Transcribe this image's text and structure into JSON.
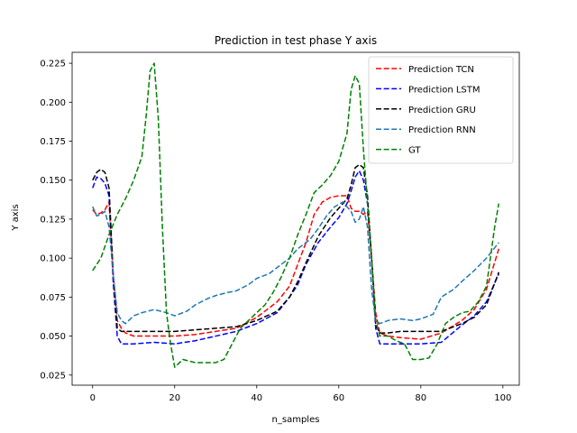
{
  "chart_data": {
    "type": "line",
    "title": "Prediction in test phase Y axis",
    "xlabel": "n_samples",
    "ylabel": "Y axis",
    "xlim": [
      -5,
      104
    ],
    "ylim": [
      0.0185,
      0.232
    ],
    "xticks": [
      0,
      20,
      40,
      60,
      80,
      100
    ],
    "xtick_labels": [
      "0",
      "20",
      "40",
      "60",
      "80",
      "100"
    ],
    "yticks": [
      0.025,
      0.05,
      0.075,
      0.1,
      0.125,
      0.15,
      0.175,
      0.2,
      0.225
    ],
    "ytick_labels": [
      "0.025",
      "0.050",
      "0.075",
      "0.100",
      "0.125",
      "0.150",
      "0.175",
      "0.200",
      "0.225"
    ],
    "grid": false,
    "legend_position": "upper right",
    "series": [
      {
        "name": "Prediction TCN",
        "color": "#ff0000",
        "x": [
          0,
          1,
          2,
          3,
          4,
          5,
          6,
          7,
          8,
          10,
          15,
          20,
          25,
          30,
          35,
          40,
          45,
          48,
          50,
          52,
          54,
          56,
          58,
          60,
          62,
          63,
          64,
          65,
          66,
          67,
          68,
          69,
          70,
          72,
          75,
          80,
          85,
          90,
          93,
          96,
          99
        ],
        "y": [
          0.131,
          0.128,
          0.129,
          0.131,
          0.136,
          0.09,
          0.06,
          0.055,
          0.052,
          0.05,
          0.05,
          0.05,
          0.051,
          0.053,
          0.055,
          0.062,
          0.072,
          0.082,
          0.096,
          0.11,
          0.128,
          0.136,
          0.139,
          0.14,
          0.14,
          0.132,
          0.13,
          0.13,
          0.128,
          0.13,
          0.1,
          0.065,
          0.052,
          0.05,
          0.049,
          0.048,
          0.052,
          0.06,
          0.067,
          0.08,
          0.106
        ]
      },
      {
        "name": "Prediction LSTM",
        "color": "#0000ff",
        "x": [
          0,
          1,
          2,
          3,
          4,
          5,
          6,
          7,
          10,
          15,
          20,
          25,
          30,
          35,
          40,
          45,
          48,
          50,
          52,
          55,
          58,
          60,
          62,
          63,
          64,
          65,
          66,
          67,
          68,
          69,
          70,
          72,
          75,
          80,
          85,
          90,
          93,
          96,
          99
        ],
        "y": [
          0.145,
          0.152,
          0.151,
          0.148,
          0.14,
          0.085,
          0.05,
          0.045,
          0.045,
          0.046,
          0.045,
          0.047,
          0.05,
          0.053,
          0.058,
          0.065,
          0.075,
          0.083,
          0.096,
          0.11,
          0.12,
          0.126,
          0.135,
          0.143,
          0.152,
          0.156,
          0.15,
          0.135,
          0.1,
          0.055,
          0.045,
          0.045,
          0.045,
          0.045,
          0.046,
          0.057,
          0.063,
          0.072,
          0.09
        ]
      },
      {
        "name": "Prediction GRU",
        "color": "#000000",
        "x": [
          0,
          1,
          2,
          3,
          4,
          5,
          6,
          7,
          10,
          15,
          20,
          25,
          30,
          35,
          40,
          45,
          48,
          50,
          52,
          55,
          58,
          60,
          62,
          63,
          64,
          65,
          66,
          67,
          68,
          69,
          70,
          72,
          75,
          80,
          85,
          90,
          93,
          96,
          99
        ],
        "y": [
          0.15,
          0.155,
          0.157,
          0.155,
          0.145,
          0.09,
          0.055,
          0.053,
          0.053,
          0.053,
          0.053,
          0.054,
          0.055,
          0.056,
          0.06,
          0.066,
          0.075,
          0.085,
          0.097,
          0.114,
          0.126,
          0.132,
          0.138,
          0.147,
          0.158,
          0.16,
          0.158,
          0.14,
          0.1,
          0.057,
          0.052,
          0.052,
          0.053,
          0.053,
          0.053,
          0.058,
          0.062,
          0.07,
          0.091
        ]
      },
      {
        "name": "Prediction RNN",
        "color": "#1f77b4",
        "x": [
          0,
          1,
          2,
          3,
          4,
          5,
          6,
          7,
          8,
          10,
          12,
          15,
          18,
          20,
          23,
          25,
          28,
          30,
          33,
          35,
          38,
          40,
          43,
          45,
          48,
          50,
          53,
          55,
          57,
          59,
          61,
          63,
          64,
          65,
          66,
          67,
          68,
          69,
          70,
          72,
          75,
          78,
          80,
          83,
          85,
          88,
          90,
          93,
          96,
          99
        ],
        "y": [
          0.133,
          0.127,
          0.128,
          0.13,
          0.12,
          0.09,
          0.065,
          0.06,
          0.058,
          0.063,
          0.065,
          0.067,
          0.065,
          0.063,
          0.066,
          0.07,
          0.074,
          0.076,
          0.078,
          0.079,
          0.083,
          0.087,
          0.09,
          0.094,
          0.1,
          0.106,
          0.112,
          0.119,
          0.127,
          0.133,
          0.136,
          0.13,
          0.123,
          0.125,
          0.133,
          0.12,
          0.08,
          0.06,
          0.058,
          0.06,
          0.061,
          0.06,
          0.061,
          0.064,
          0.075,
          0.08,
          0.085,
          0.092,
          0.1,
          0.11
        ]
      },
      {
        "name": "GT",
        "color": "#008000",
        "x": [
          0,
          2,
          4,
          6,
          8,
          10,
          12,
          13,
          14,
          15,
          16,
          17,
          18,
          19,
          20,
          22,
          25,
          28,
          30,
          32,
          34,
          36,
          38,
          40,
          42,
          44,
          46,
          48,
          50,
          52,
          54,
          56,
          58,
          60,
          62,
          63,
          64,
          65,
          66,
          67,
          68,
          69,
          70,
          72,
          74,
          76,
          78,
          80,
          82,
          84,
          86,
          88,
          90,
          92,
          94,
          96,
          98,
          99
        ],
        "y": [
          0.092,
          0.1,
          0.115,
          0.128,
          0.138,
          0.15,
          0.165,
          0.19,
          0.22,
          0.225,
          0.19,
          0.12,
          0.065,
          0.045,
          0.03,
          0.035,
          0.033,
          0.033,
          0.033,
          0.035,
          0.045,
          0.055,
          0.06,
          0.065,
          0.07,
          0.078,
          0.088,
          0.1,
          0.115,
          0.128,
          0.142,
          0.147,
          0.153,
          0.162,
          0.18,
          0.208,
          0.217,
          0.212,
          0.17,
          0.135,
          0.1,
          0.06,
          0.05,
          0.05,
          0.047,
          0.045,
          0.035,
          0.035,
          0.036,
          0.045,
          0.058,
          0.062,
          0.065,
          0.066,
          0.072,
          0.082,
          0.12,
          0.135
        ]
      }
    ]
  }
}
